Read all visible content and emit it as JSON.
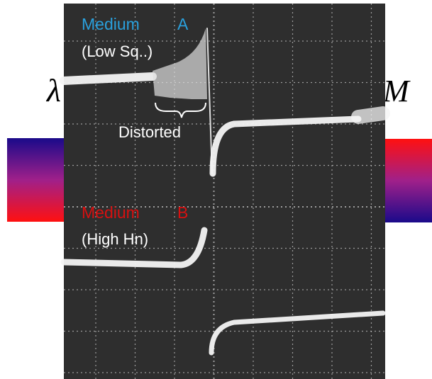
{
  "labels": {
    "left_symbol": "λ",
    "right_symbol": "M"
  },
  "scope": {
    "medium_a": {
      "name": "Medium",
      "letter": "A",
      "note": "(Low Sq..)"
    },
    "distorted": "Distorted",
    "medium_b": {
      "name": "Medium",
      "letter": "B",
      "note": "(High Hn)"
    }
  }
}
